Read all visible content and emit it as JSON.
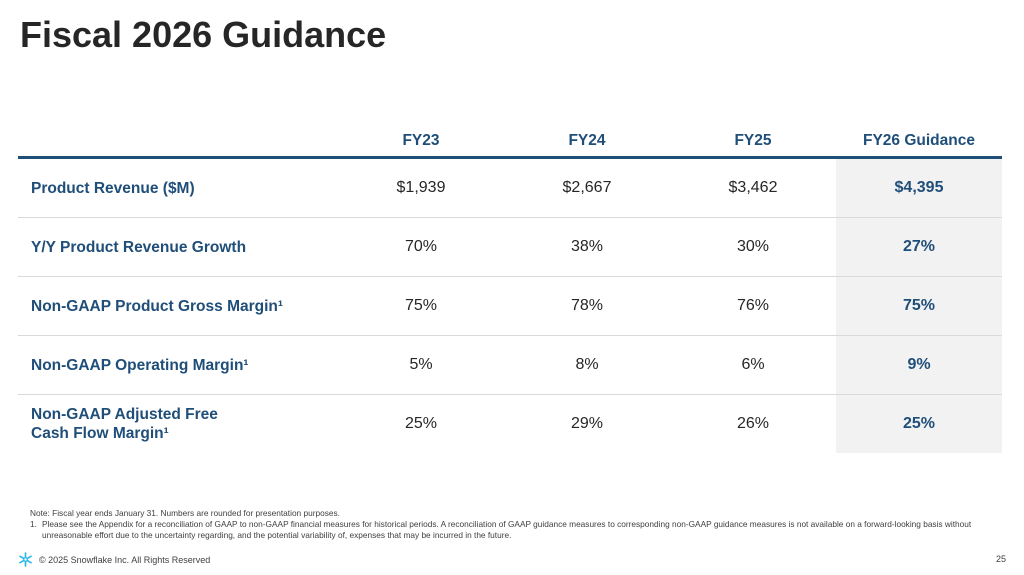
{
  "title": "Fiscal 2026 Guidance",
  "table": {
    "columns": [
      "FY23",
      "FY24",
      "FY25",
      "FY26 Guidance"
    ],
    "rows": [
      {
        "label": "Product Revenue ($M)",
        "values": [
          "$1,939",
          "$2,667",
          "$3,462",
          "$4,395"
        ]
      },
      {
        "label": "Y/Y Product Revenue Growth",
        "values": [
          "70%",
          "38%",
          "30%",
          "27%"
        ]
      },
      {
        "label": "Non-GAAP Product Gross Margin¹",
        "values": [
          "75%",
          "78%",
          "76%",
          "75%"
        ]
      },
      {
        "label": "Non-GAAP Operating Margin¹",
        "values": [
          "5%",
          "8%",
          "6%",
          "9%"
        ]
      },
      {
        "label_line1": "Non-GAAP Adjusted Free",
        "label_line2": "Cash Flow Margin¹",
        "values": [
          "25%",
          "29%",
          "26%",
          "25%"
        ]
      }
    ]
  },
  "notes": {
    "note": "Note: Fiscal year ends January 31. Numbers are rounded for presentation purposes.",
    "footnote_number": "1.",
    "footnote": "Please see the Appendix for a reconciliation of GAAP to non-GAAP financial measures for historical periods. A reconciliation of GAAP guidance measures to corresponding non-GAAP guidance measures is not available on a forward-looking basis without unreasonable effort due to the uncertainty regarding, and the potential variability of, expenses that may be incurred in the future."
  },
  "footer": {
    "copyright": "© 2025 Snowflake Inc. All Rights Reserved",
    "page_number": "25",
    "logo_icon": "snowflake-icon",
    "logo_color": "#29b5e8"
  },
  "colors": {
    "accent": "#1f4e79",
    "highlight_bg": "#f2f2f2",
    "text": "#262626"
  }
}
